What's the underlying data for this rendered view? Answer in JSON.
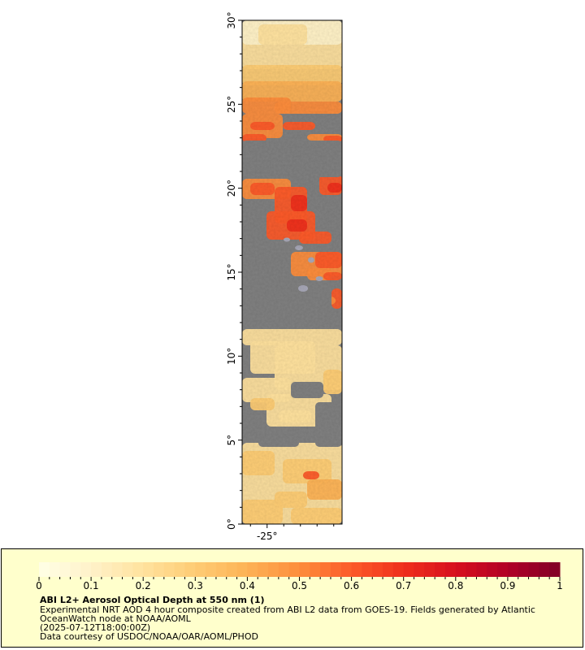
{
  "map": {
    "lat_axis": {
      "ticks": [
        {
          "value": 0,
          "label": "0°"
        },
        {
          "value": 5,
          "label": "5°"
        },
        {
          "value": 10,
          "label": "10°"
        },
        {
          "value": 15,
          "label": "15°"
        },
        {
          "value": 20,
          "label": "20°"
        },
        {
          "value": 25,
          "label": "25°"
        },
        {
          "value": 30,
          "label": "30°"
        }
      ]
    },
    "lon_axis": {
      "ticks": [
        {
          "value": -25,
          "label": "-25°"
        }
      ]
    },
    "colors": {
      "no_data": "#808080",
      "land_hint": "#a8a8b8",
      "frame": "#000000"
    }
  },
  "colorbar": {
    "ticks": [
      "0",
      "0.1",
      "0.2",
      "0.3",
      "0.4",
      "0.5",
      "0.6",
      "0.7",
      "0.8",
      "0.9",
      "1"
    ],
    "colors": [
      "#ffffe6",
      "#fff2c9",
      "#ffe29e",
      "#fecc74",
      "#fdb255",
      "#fd8d3c",
      "#fc5a29",
      "#ef2f1c",
      "#d7101e",
      "#b10026",
      "#800026"
    ]
  },
  "info": {
    "title": "ABI L2+ Aerosol Optical Depth at 550 nm (1)",
    "line1": "Experimental NRT AOD 4 hour composite created from ABI L2 data from GOES-19. Fields generated by Atlantic",
    "line2": "OceanWatch node at NOAA/AOML",
    "line3": "(2025-07-12T18:00:00Z)",
    "line4": "Data courtesy of USDOC/NOAA/OAR/AOML/PHOD"
  }
}
